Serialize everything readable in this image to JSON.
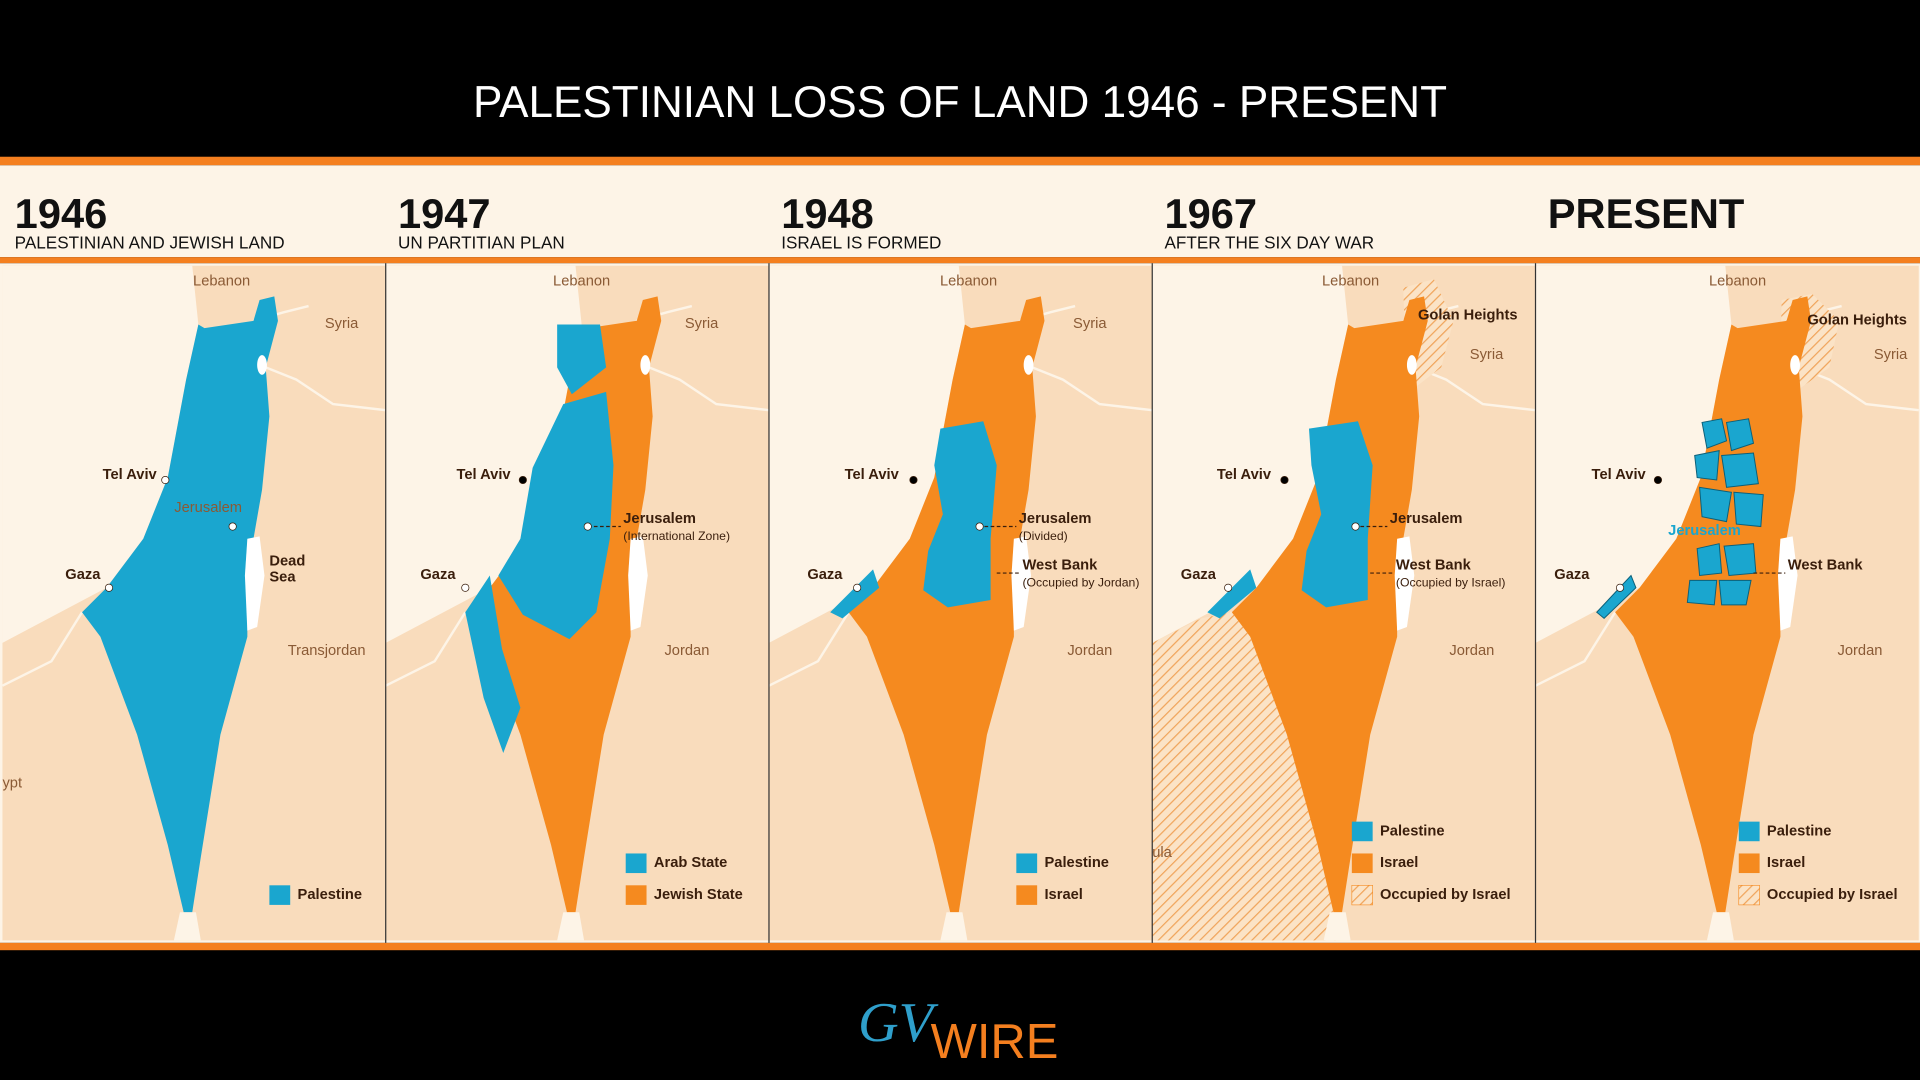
{
  "header": {
    "title": "PALESTINIAN LOSS OF LAND 1946 - PRESENT"
  },
  "panels": [
    {
      "year": "1946",
      "subtitle": "PALESTINIAN AND JEWISH LAND",
      "labels": [
        "Lebanon",
        "Syria",
        "Tel Aviv",
        "Jerusalem",
        "Gaza",
        "Dead",
        "Sea",
        "Transjordan",
        "ypt"
      ],
      "legend": [
        {
          "label": "Palestine",
          "color": "#1aa6cf"
        }
      ]
    },
    {
      "year": "1947",
      "subtitle": "UN PARTITIAN PLAN",
      "labels": [
        "Lebanon",
        "Syria",
        "Tel Aviv",
        "Jerusalem",
        "(International Zone)",
        "Gaza",
        "Jordan"
      ],
      "legend": [
        {
          "label": "Arab State",
          "color": "#1aa6cf"
        },
        {
          "label": "Jewish State",
          "color": "#f58a1f"
        }
      ]
    },
    {
      "year": "1948",
      "subtitle": "ISRAEL IS FORMED",
      "labels": [
        "Lebanon",
        "Syria",
        "Tel Aviv",
        "Jerusalem",
        "(Divided)",
        "West Bank",
        "(Occupied by Jordan)",
        "Gaza",
        "Jordan"
      ],
      "legend": [
        {
          "label": "Palestine",
          "color": "#1aa6cf"
        },
        {
          "label": "Israel",
          "color": "#f58a1f"
        }
      ]
    },
    {
      "year": "1967",
      "subtitle": "AFTER THE SIX DAY WAR",
      "labels": [
        "Lebanon",
        "Golan Heights",
        "Syria",
        "Tel Aviv",
        "Jerusalem",
        "West Bank",
        "(Occupied by Israel)",
        "Gaza",
        "Jordan",
        "ula"
      ],
      "legend": [
        {
          "label": "Palestine",
          "color": "#1aa6cf"
        },
        {
          "label": "Israel",
          "color": "#f58a1f"
        },
        {
          "label": "Occupied by Israel",
          "color": "#f58a1f",
          "hatched": true
        }
      ]
    },
    {
      "year": "PRESENT",
      "labels": [
        "Lebanon",
        "Golan Heights",
        "Syria",
        "Tel Aviv",
        "Jerusalem",
        "West Bank",
        "Gaza",
        "Jordan"
      ],
      "legend": [
        {
          "label": "Palestine",
          "color": "#1aa6cf"
        },
        {
          "label": "Israel",
          "color": "#f58a1f"
        },
        {
          "label": "Occupied by Israel",
          "color": "#f58a1f",
          "hatched": true
        }
      ]
    }
  ],
  "footer": {
    "logo_mark": "GV",
    "logo_text": "WIRE"
  }
}
